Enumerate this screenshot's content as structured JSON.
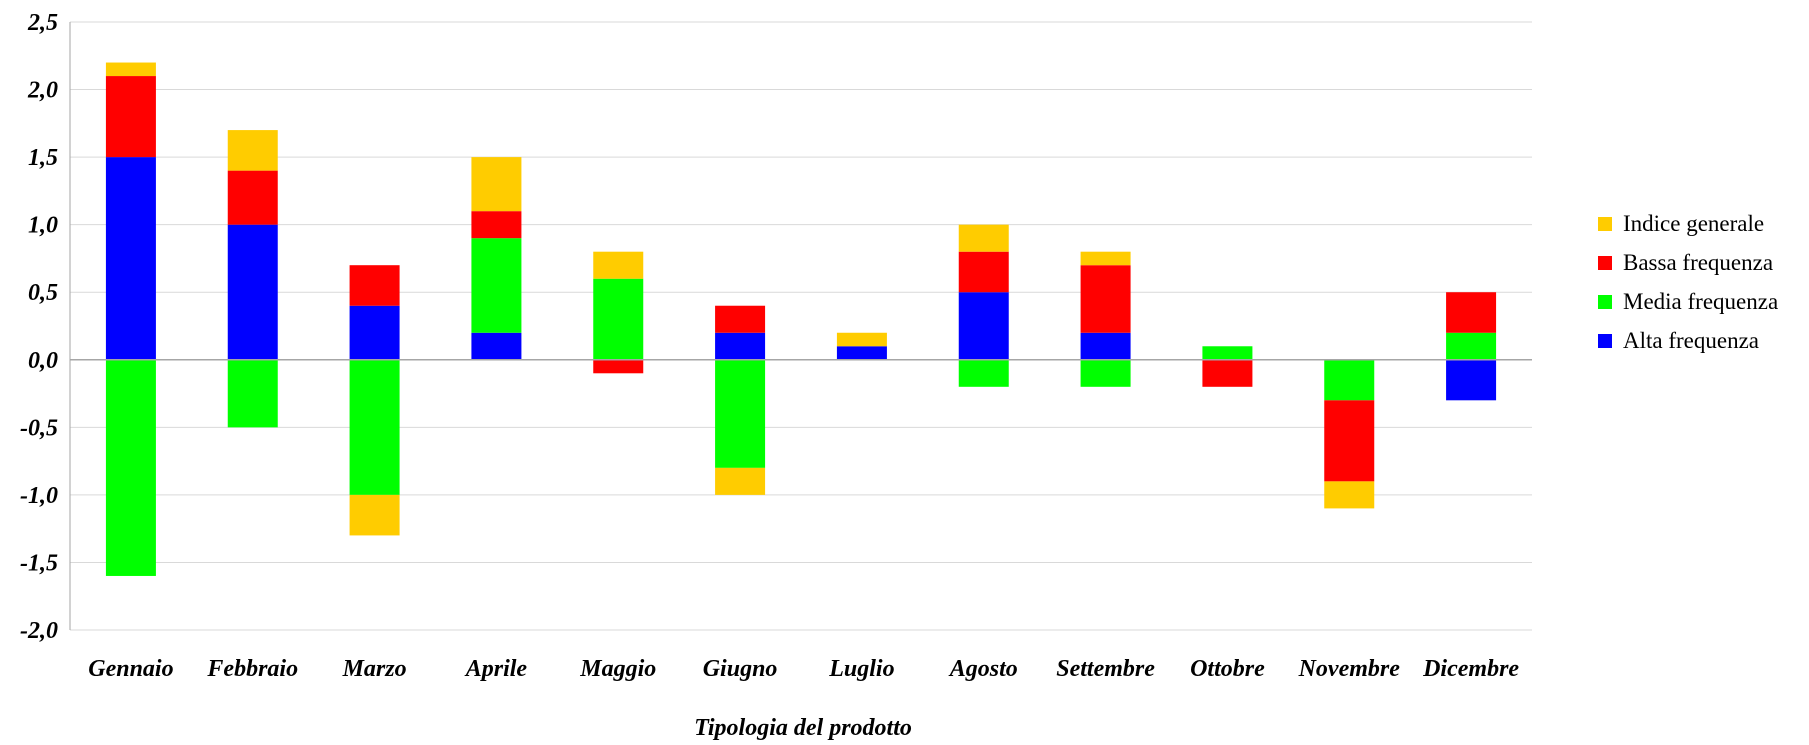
{
  "chart_data": {
    "type": "bar",
    "stacked": true,
    "title": "",
    "xlabel": "Tipologia del prodotto",
    "ylabel": "",
    "ylim": [
      -2.0,
      2.5
    ],
    "ytick_step": 0.5,
    "ytick_labels": [
      "-2,0",
      "-1,5",
      "-1,0",
      "-0,5",
      "0,0",
      "0,5",
      "1,0",
      "1,5",
      "2,0",
      "2,5"
    ],
    "grid": true,
    "legend_position": "right",
    "categories": [
      "Gennaio",
      "Febbraio",
      "Marzo",
      "Aprile",
      "Maggio",
      "Giugno",
      "Luglio",
      "Agosto",
      "Settembre",
      "Ottobre",
      "Novembre",
      "Dicembre"
    ],
    "series": [
      {
        "name": "Alta frequenza",
        "color": "#0000FF",
        "values": [
          1.5,
          1.0,
          0.4,
          0.2,
          0.0,
          0.2,
          0.1,
          0.5,
          0.2,
          0.0,
          0.0,
          -0.3
        ]
      },
      {
        "name": "Media frequenza",
        "color": "#00FF00",
        "values": [
          -1.6,
          -0.5,
          -1.0,
          0.7,
          0.6,
          -0.8,
          0.0,
          -0.2,
          -0.2,
          0.1,
          -0.3,
          0.2
        ]
      },
      {
        "name": "Bassa frequenza",
        "color": "#FF0000",
        "values": [
          0.6,
          0.4,
          0.3,
          0.2,
          -0.1,
          0.2,
          0.0,
          0.3,
          0.5,
          -0.2,
          -0.6,
          0.3
        ]
      },
      {
        "name": "Indice generale",
        "color": "#FFCC00",
        "values": [
          0.1,
          0.3,
          -0.3,
          0.4,
          0.2,
          -0.2,
          0.1,
          0.2,
          0.1,
          0.0,
          -0.2,
          0.0
        ]
      }
    ],
    "legend_order": [
      "Indice generale",
      "Bassa frequenza",
      "Media frequenza",
      "Alta frequenza"
    ]
  }
}
